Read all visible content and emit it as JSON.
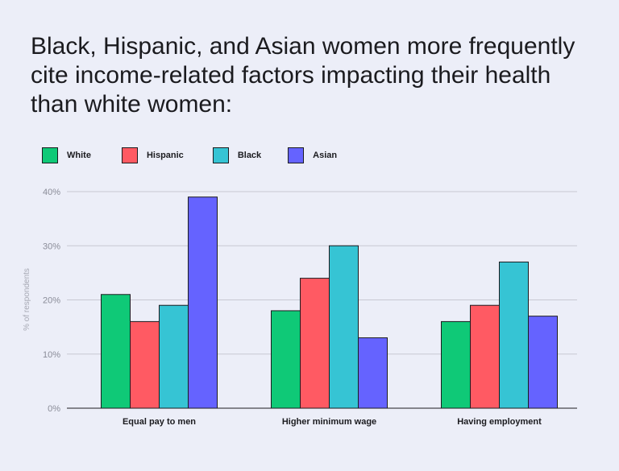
{
  "title": "Black, Hispanic, and Asian women more frequently cite income-related factors impacting their health than white women:",
  "legend": [
    {
      "label": "White",
      "color": "#0fc977"
    },
    {
      "label": "Hispanic",
      "color": "#ff5a63"
    },
    {
      "label": "Black",
      "color": "#36c4d4"
    },
    {
      "label": "Asian",
      "color": "#6563ff"
    }
  ],
  "chart_data": {
    "type": "bar",
    "title": "Black, Hispanic, and Asian women more frequently cite income-related factors impacting their health than white women:",
    "xlabel": "",
    "ylabel": "% of respondents",
    "ylim": [
      0,
      40
    ],
    "yticks": [
      0,
      10,
      20,
      30,
      40
    ],
    "ytick_labels": [
      "0%",
      "10%",
      "20%",
      "30%",
      "40%"
    ],
    "grid": true,
    "legend_position": "top-left",
    "categories": [
      "Equal pay to men",
      "Higher minimum wage",
      "Having employment"
    ],
    "series": [
      {
        "name": "White",
        "color": "#0fc977",
        "values": [
          21,
          18,
          16
        ]
      },
      {
        "name": "Hispanic",
        "color": "#ff5a63",
        "values": [
          16,
          24,
          19
        ]
      },
      {
        "name": "Black",
        "color": "#36c4d4",
        "values": [
          19,
          30,
          27
        ]
      },
      {
        "name": "Asian",
        "color": "#6563ff",
        "values": [
          39,
          13,
          17
        ]
      }
    ]
  }
}
